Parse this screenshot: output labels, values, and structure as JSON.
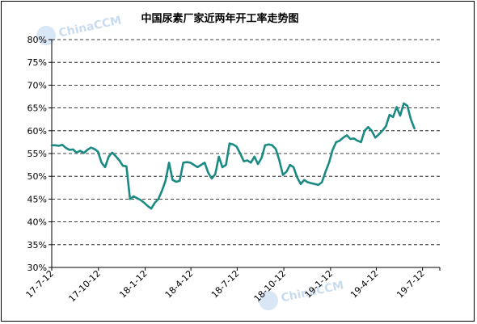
{
  "chart_data": {
    "type": "line",
    "title": "中国尿素厂家近两年开工率走势图",
    "xlabel": "",
    "ylabel": "",
    "ylim": [
      30,
      80
    ],
    "yticks": [
      "30%",
      "35%",
      "40%",
      "45%",
      "50%",
      "55%",
      "60%",
      "65%",
      "70%",
      "75%",
      "80%"
    ],
    "xlim": [
      "2017-07-12",
      "2019-08-15"
    ],
    "xticks": [
      {
        "label": "17-7-12",
        "date": "2017-07-12"
      },
      {
        "label": "17-10-12",
        "date": "2017-10-12"
      },
      {
        "label": "18-1-12",
        "date": "2018-01-12"
      },
      {
        "label": "18-4-12",
        "date": "2018-04-12"
      },
      {
        "label": "18-7-12",
        "date": "2018-07-12"
      },
      {
        "label": "18-10-12",
        "date": "2018-10-12"
      },
      {
        "label": "19-1-12",
        "date": "2019-01-12"
      },
      {
        "label": "19-4-12",
        "date": "2019-04-12"
      },
      {
        "label": "19-7-12",
        "date": "2019-07-12"
      }
    ],
    "grid": "horizontal-dashed",
    "legend": "none",
    "line_color": "#1a8a82",
    "series": [
      {
        "points": [
          [
            "2017-07-12",
            56.8
          ],
          [
            "2017-07-19",
            56.8
          ],
          [
            "2017-07-26",
            56.7
          ],
          [
            "2017-08-02",
            56.9
          ],
          [
            "2017-08-09",
            56.2
          ],
          [
            "2017-08-16",
            55.8
          ],
          [
            "2017-08-23",
            55.9
          ],
          [
            "2017-08-30",
            55.2
          ],
          [
            "2017-09-06",
            55.6
          ],
          [
            "2017-09-13",
            55.1
          ],
          [
            "2017-09-20",
            55.8
          ],
          [
            "2017-09-27",
            56.3
          ],
          [
            "2017-10-04",
            56.0
          ],
          [
            "2017-10-11",
            55.4
          ],
          [
            "2017-10-18",
            53.0
          ],
          [
            "2017-10-25",
            52.0
          ],
          [
            "2017-11-01",
            54.3
          ],
          [
            "2017-11-08",
            55.2
          ],
          [
            "2017-11-15",
            54.4
          ],
          [
            "2017-11-22",
            53.5
          ],
          [
            "2017-11-29",
            52.3
          ],
          [
            "2017-12-06",
            52.2
          ],
          [
            "2017-12-13",
            45.0
          ],
          [
            "2017-12-20",
            45.6
          ],
          [
            "2017-12-27",
            45.2
          ],
          [
            "2018-01-03",
            44.8
          ],
          [
            "2018-01-10",
            44.2
          ],
          [
            "2018-01-17",
            43.5
          ],
          [
            "2018-01-24",
            42.9
          ],
          [
            "2018-01-31",
            44.2
          ],
          [
            "2018-02-07",
            45.0
          ],
          [
            "2018-02-14",
            46.8
          ],
          [
            "2018-02-21",
            49.0
          ],
          [
            "2018-02-28",
            53.0
          ],
          [
            "2018-03-07",
            49.2
          ],
          [
            "2018-03-14",
            48.8
          ],
          [
            "2018-03-21",
            49.0
          ],
          [
            "2018-03-28",
            53.0
          ],
          [
            "2018-04-04",
            53.1
          ],
          [
            "2018-04-11",
            53.0
          ],
          [
            "2018-04-18",
            52.5
          ],
          [
            "2018-04-25",
            52.0
          ],
          [
            "2018-05-02",
            52.5
          ],
          [
            "2018-05-09",
            53.0
          ],
          [
            "2018-05-16",
            50.8
          ],
          [
            "2018-05-23",
            49.5
          ],
          [
            "2018-05-30",
            50.5
          ],
          [
            "2018-06-06",
            54.3
          ],
          [
            "2018-06-13",
            52.0
          ],
          [
            "2018-06-20",
            52.5
          ],
          [
            "2018-06-27",
            57.2
          ],
          [
            "2018-07-04",
            57.0
          ],
          [
            "2018-07-11",
            56.5
          ],
          [
            "2018-07-18",
            55.0
          ],
          [
            "2018-07-25",
            53.3
          ],
          [
            "2018-08-01",
            53.5
          ],
          [
            "2018-08-08",
            53.0
          ],
          [
            "2018-08-15",
            54.3
          ],
          [
            "2018-08-22",
            52.7
          ],
          [
            "2018-08-29",
            54.0
          ],
          [
            "2018-09-05",
            56.8
          ],
          [
            "2018-09-12",
            57.0
          ],
          [
            "2018-09-19",
            56.8
          ],
          [
            "2018-09-26",
            56.0
          ],
          [
            "2018-10-03",
            53.5
          ],
          [
            "2018-10-10",
            50.3
          ],
          [
            "2018-10-17",
            51.0
          ],
          [
            "2018-10-24",
            52.5
          ],
          [
            "2018-10-31",
            52.0
          ],
          [
            "2018-11-07",
            49.8
          ],
          [
            "2018-11-14",
            48.3
          ],
          [
            "2018-11-21",
            49.2
          ],
          [
            "2018-11-28",
            48.7
          ],
          [
            "2018-12-05",
            48.5
          ],
          [
            "2018-12-12",
            48.3
          ],
          [
            "2018-12-19",
            48.1
          ],
          [
            "2018-12-26",
            48.7
          ],
          [
            "2019-01-02",
            51.0
          ],
          [
            "2019-01-09",
            53.0
          ],
          [
            "2019-01-16",
            55.8
          ],
          [
            "2019-01-23",
            57.5
          ],
          [
            "2019-01-30",
            57.8
          ],
          [
            "2019-02-06",
            58.5
          ],
          [
            "2019-02-13",
            59.0
          ],
          [
            "2019-02-20",
            58.2
          ],
          [
            "2019-02-27",
            58.3
          ],
          [
            "2019-03-06",
            57.8
          ],
          [
            "2019-03-13",
            57.5
          ],
          [
            "2019-03-20",
            60.0
          ],
          [
            "2019-03-27",
            60.8
          ],
          [
            "2019-04-03",
            60.0
          ],
          [
            "2019-04-10",
            58.5
          ],
          [
            "2019-04-17",
            59.2
          ],
          [
            "2019-04-24",
            60.0
          ],
          [
            "2019-05-01",
            61.0
          ],
          [
            "2019-05-08",
            63.5
          ],
          [
            "2019-05-15",
            63.0
          ],
          [
            "2019-05-22",
            65.2
          ],
          [
            "2019-05-29",
            63.3
          ],
          [
            "2019-06-05",
            66.0
          ],
          [
            "2019-06-12",
            65.5
          ],
          [
            "2019-06-19",
            62.5
          ],
          [
            "2019-06-26",
            60.5
          ]
        ]
      }
    ]
  },
  "watermark": {
    "text": "ChinaCCM"
  }
}
